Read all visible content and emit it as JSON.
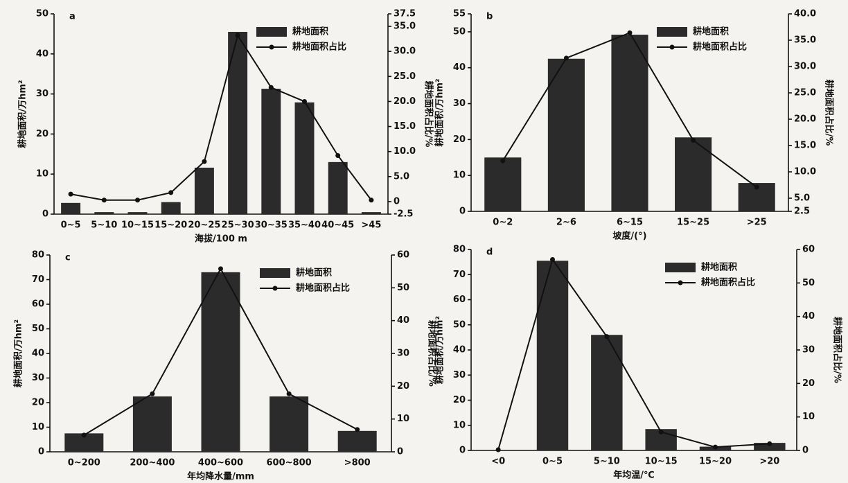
{
  "chart_data": [
    {
      "type": "bar",
      "title": "a",
      "x_label": "海拔/100 m",
      "y_label": "耕地面积/万hm²",
      "y2_label": "耕地面积占比/%",
      "legend": "upper right",
      "categories": [
        "0~5",
        "5~10",
        "10~15",
        "15~20",
        "20~25",
        "25~30",
        "30~35",
        "35~40",
        "40~45",
        ">45"
      ],
      "series": [
        {
          "name": "耕地面积",
          "type": "bar",
          "color": "#2b2b2b",
          "values": [
            2.8,
            0.5,
            0.5,
            3,
            11.6,
            45.5,
            31.3,
            27.9,
            13,
            0.5
          ]
        },
        {
          "name": "耕地面积占比",
          "type": "line",
          "axis": "y2",
          "color": "#111111",
          "values": [
            1.5,
            0.3,
            0.3,
            1.8,
            8.0,
            33.2,
            22.8,
            20.0,
            9.2,
            0.3
          ]
        }
      ],
      "ylim": [
        0,
        50
      ],
      "yticks": [
        0,
        10,
        20,
        30,
        40,
        50
      ],
      "y2lim": [
        -2.5,
        37.5
      ],
      "y2ticks": [
        {
          "value": -2.5,
          "label": "-2.5"
        },
        0,
        {
          "value": 5,
          "label": "5.0"
        },
        {
          "value": 10,
          "label": "10.0"
        },
        {
          "value": 15,
          "label": "15.0"
        },
        {
          "value": 20,
          "label": "20.0"
        },
        {
          "value": 25,
          "label": "25.0"
        },
        {
          "value": 30,
          "label": "30.0"
        },
        {
          "value": 35,
          "label": "35.0"
        },
        37.5
      ]
    },
    {
      "type": "bar",
      "title": "b",
      "x_label": "坡度/(°)",
      "y_label": "耕地面积/万hm²",
      "y2_label": "耕地面积占比/%",
      "legend": "upper right",
      "categories": [
        "0~2",
        "2~6",
        "6~15",
        "15~25",
        ">25"
      ],
      "series": [
        {
          "name": "耕地面积",
          "type": "bar",
          "color": "#2b2b2b",
          "values": [
            15,
            42.5,
            49.2,
            20.6,
            7.9
          ]
        },
        {
          "name": "耕地面积占比",
          "type": "line",
          "axis": "y2",
          "color": "#111111",
          "values": [
            12.1,
            31.6,
            36.4,
            16,
            7.1
          ]
        }
      ],
      "ylim": [
        0,
        55
      ],
      "yticks": [
        0,
        10,
        20,
        30,
        40,
        50,
        55
      ],
      "y2lim": [
        2.5,
        40
      ],
      "y2ticks": [
        2.5,
        {
          "value": 5,
          "label": "5.0"
        },
        {
          "value": 10,
          "label": "10.0"
        },
        {
          "value": 15,
          "label": "15.0"
        },
        {
          "value": 20,
          "label": "20.0"
        },
        {
          "value": 25,
          "label": "25.0"
        },
        {
          "value": 30,
          "label": "30.0"
        },
        {
          "value": 35,
          "label": "35.0"
        },
        {
          "value": 40,
          "label": "40.0"
        }
      ]
    },
    {
      "type": "bar",
      "title": "c",
      "x_label": "年均降水量/mm",
      "y_label": "耕地面积/万hm²",
      "y2_label": "耕地面积占比/%",
      "legend": "upper right",
      "categories": [
        "0~200",
        "200~400",
        "400~600",
        "600~800",
        ">800"
      ],
      "series": [
        {
          "name": "耕地面积",
          "type": "bar",
          "color": "#2b2b2b",
          "values": [
            7.5,
            22.5,
            73,
            22.5,
            8.5
          ]
        },
        {
          "name": "耕地面积占比",
          "type": "line",
          "axis": "y2",
          "color": "#111111",
          "values": [
            5.1,
            17.7,
            55.8,
            17.7,
            6.8
          ]
        }
      ],
      "ylim": [
        0,
        80
      ],
      "yticks": [
        0,
        10,
        20,
        30,
        40,
        50,
        60,
        70,
        80
      ],
      "y2lim": [
        0,
        60
      ],
      "y2ticks": [
        0,
        10,
        20,
        30,
        40,
        50,
        60
      ]
    },
    {
      "type": "bar",
      "title": "d",
      "x_label": "年均温/℃",
      "y_label": "耕地面积/万hm²",
      "y2_label": "耕地面积占比/%",
      "legend": "upper right",
      "categories": [
        "<0",
        "0~5",
        "5~10",
        "10~15",
        "15~20",
        ">20"
      ],
      "series": [
        {
          "name": "耕地面积",
          "type": "bar",
          "color": "#2b2b2b",
          "values": [
            0,
            75.5,
            46,
            8.5,
            1.5,
            3
          ]
        },
        {
          "name": "耕地面积占比",
          "type": "line",
          "axis": "y2",
          "color": "#111111",
          "values": [
            0.2,
            57,
            34,
            5.5,
            1,
            2
          ]
        }
      ],
      "ylim": [
        0,
        80
      ],
      "yticks": [
        0,
        10,
        20,
        30,
        40,
        50,
        60,
        70,
        80
      ],
      "y2lim": [
        0,
        60
      ],
      "y2ticks": [
        0,
        10,
        20,
        30,
        40,
        50,
        60
      ]
    }
  ]
}
